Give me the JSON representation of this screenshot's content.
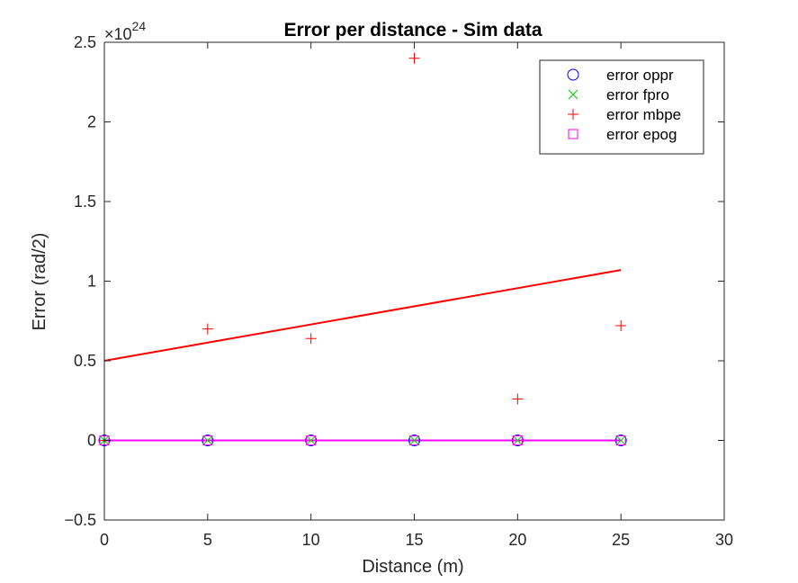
{
  "chart_data": {
    "type": "scatter",
    "title": "Error per distance  - Sim data",
    "xlabel": "Distance (m)",
    "ylabel": "Error (rad/2)",
    "exponent_base": "×10",
    "exponent_power": "24",
    "xlim": [
      0,
      30
    ],
    "ylim": [
      -0.5,
      2.5
    ],
    "xticks": [
      0,
      5,
      10,
      15,
      20,
      25,
      30
    ],
    "yticks": [
      -0.5,
      0,
      0.5,
      1,
      1.5,
      2,
      2.5
    ],
    "xtick_labels": [
      "0",
      "5",
      "10",
      "15",
      "20",
      "25",
      "30"
    ],
    "ytick_labels": [
      "−0.5",
      "0",
      "0.5",
      "1",
      "1.5",
      "2",
      "2.5"
    ],
    "legend_position": "top-right",
    "series": [
      {
        "name": "error oppr",
        "marker": "circle",
        "color": "#0000ff",
        "x": [
          0,
          5,
          10,
          15,
          20,
          25
        ],
        "y": [
          0,
          0,
          0,
          0,
          0,
          0
        ]
      },
      {
        "name": "error fpro",
        "marker": "x",
        "color": "#00cc00",
        "x": [
          0,
          5,
          10,
          15,
          20,
          25
        ],
        "y": [
          0,
          0,
          0,
          0,
          0,
          0
        ]
      },
      {
        "name": "error mbpe",
        "marker": "plus",
        "color": "#ff0000",
        "x": [
          0,
          5,
          10,
          15,
          20,
          25
        ],
        "y": [
          0,
          0.7,
          0.64,
          2.4,
          0.26,
          0.72
        ]
      },
      {
        "name": "error epog",
        "marker": "square",
        "color": "#ff00ff",
        "x": [
          0,
          5,
          10,
          15,
          20,
          25
        ],
        "y": [
          0,
          0,
          0,
          0,
          0,
          0
        ]
      }
    ],
    "fit_lines": [
      {
        "series": "error mbpe",
        "color": "#ff0000",
        "x": [
          0,
          25
        ],
        "y": [
          0.5,
          1.07
        ]
      },
      {
        "series": "error epog",
        "color": "#ff00ff",
        "x": [
          0,
          25
        ],
        "y": [
          0,
          0
        ]
      }
    ]
  }
}
